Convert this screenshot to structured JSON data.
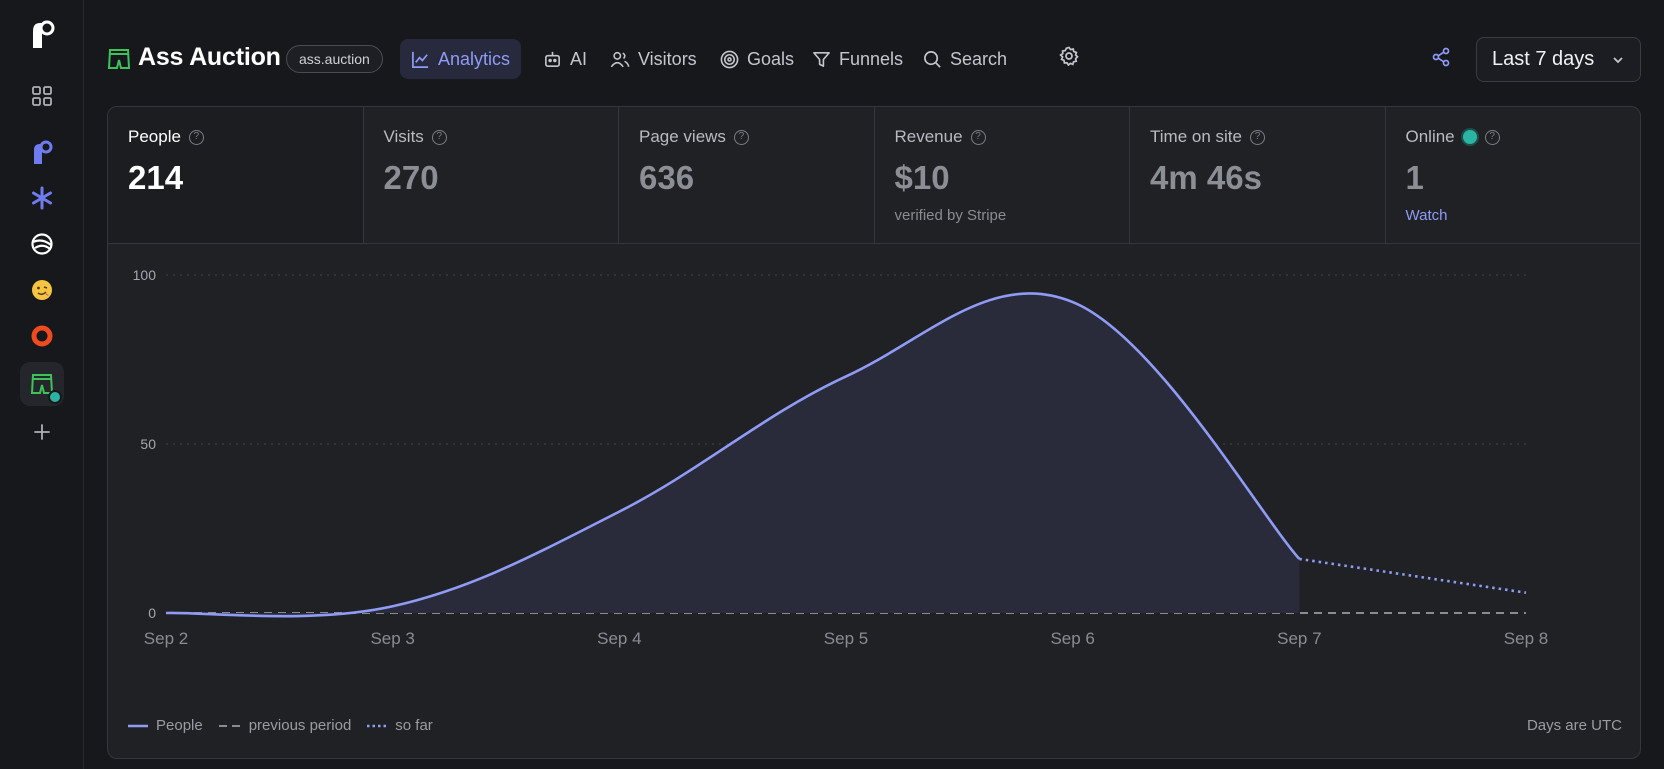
{
  "site": {
    "name": "Ass Auction",
    "domain": "ass.auction"
  },
  "nav": {
    "tabs": [
      {
        "label": "Analytics",
        "icon": "chart-line-icon",
        "active": true
      },
      {
        "label": "AI",
        "icon": "robot-icon"
      },
      {
        "label": "Visitors",
        "icon": "users-icon"
      },
      {
        "label": "Goals",
        "icon": "target-icon"
      },
      {
        "label": "Funnels",
        "icon": "funnel-icon"
      },
      {
        "label": "Search",
        "icon": "search-icon"
      }
    ],
    "date_range": "Last 7 days"
  },
  "stats": [
    {
      "label": "People",
      "value": "214"
    },
    {
      "label": "Visits",
      "value": "270"
    },
    {
      "label": "Page views",
      "value": "636"
    },
    {
      "label": "Revenue",
      "value": "$10",
      "sub": "verified by Stripe"
    },
    {
      "label": "Time on site",
      "value": "4m 46s"
    },
    {
      "label": "Online",
      "value": "1",
      "link": "Watch"
    }
  ],
  "legend": {
    "series": "People",
    "previous": "previous period",
    "partial": "so far",
    "note": "Days are UTC"
  },
  "colors": {
    "accent": "#8f9bf5",
    "online": "#2bb3a3",
    "brand_green": "#3ec25a"
  },
  "chart_data": {
    "type": "area",
    "categories": [
      "Sep 2",
      "Sep 3",
      "Sep 4",
      "Sep 5",
      "Sep 6",
      "Sep 7",
      "Sep 8"
    ],
    "series": [
      {
        "name": "People",
        "values": [
          0,
          2,
          30,
          70,
          92,
          16,
          6
        ]
      },
      {
        "name": "previous period",
        "values": [
          0,
          0,
          0,
          0,
          0,
          0,
          0
        ]
      }
    ],
    "partial_from": "Sep 7",
    "yticks": [
      0,
      50,
      100
    ],
    "ylim": [
      0,
      100
    ],
    "grid": true
  }
}
